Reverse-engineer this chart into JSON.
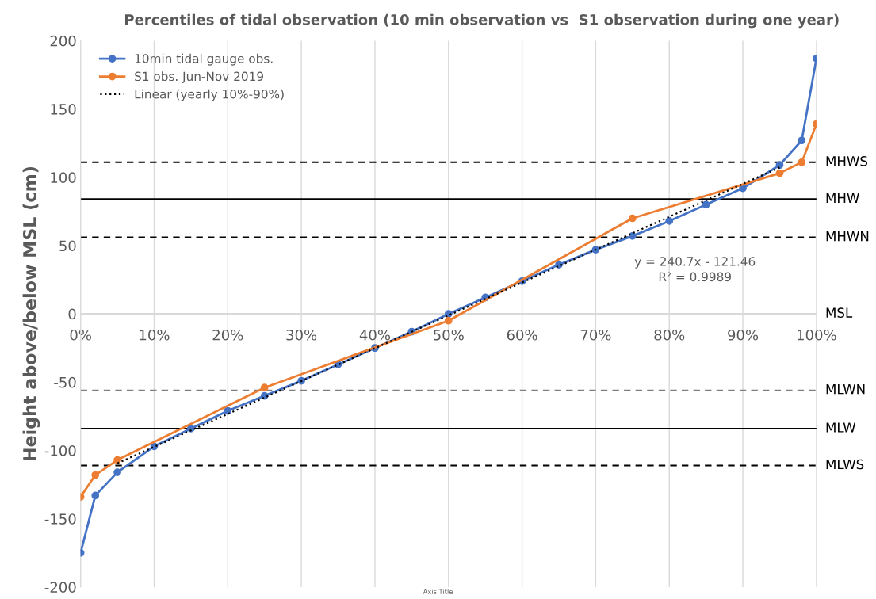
{
  "chart_data": {
    "type": "line",
    "title": "Percentiles of tidal observation (10 min observation vs  S1 observation during one year)",
    "xlabel": "Axis Title",
    "ylabel": "Height above/below MSL (cm)",
    "series": [
      {
        "name": "10min tidal gauge obs.",
        "color": "#4472c4",
        "marker": "circle",
        "line_style": "solid",
        "x": [
          0,
          0.02,
          0.05,
          0.1,
          0.15,
          0.2,
          0.25,
          0.3,
          0.35,
          0.4,
          0.45,
          0.5,
          0.55,
          0.6,
          0.65,
          0.7,
          0.75,
          0.8,
          0.85,
          0.9,
          0.95,
          0.98,
          1.0
        ],
        "values": [
          -175,
          -133,
          -116,
          -97,
          -84,
          -71,
          -60,
          -49,
          -37,
          -25,
          -13,
          0,
          12,
          24,
          36,
          47,
          57,
          68,
          80,
          92,
          109,
          127,
          187
        ]
      },
      {
        "name": "S1 obs. Jun-Nov 2019",
        "color": "#ed7d31",
        "marker": "circle",
        "line_style": "solid",
        "x": [
          0,
          0.02,
          0.05,
          0.25,
          0.5,
          0.75,
          0.95,
          0.98,
          1.0
        ],
        "values": [
          -134,
          -118,
          -107,
          -54,
          -5,
          70,
          103,
          111,
          139
        ]
      },
      {
        "name": "Linear (yearly 10%-90%)",
        "color": "#000000",
        "marker": "none",
        "line_style": "dotted",
        "x": [
          0.05,
          0.95
        ],
        "values": [
          -109.4,
          107.2
        ]
      }
    ],
    "xlim": [
      0,
      1
    ],
    "xticks": [
      {
        "value": 0,
        "label": "0%"
      },
      {
        "value": 0.1,
        "label": "10%"
      },
      {
        "value": 0.2,
        "label": "20%"
      },
      {
        "value": 0.3,
        "label": "30%"
      },
      {
        "value": 0.4,
        "label": "40%"
      },
      {
        "value": 0.5,
        "label": "50%"
      },
      {
        "value": 0.6,
        "label": "60%"
      },
      {
        "value": 0.7,
        "label": "70%"
      },
      {
        "value": 0.8,
        "label": "80%"
      },
      {
        "value": 0.9,
        "label": "90%"
      },
      {
        "value": 1.0,
        "label": "100%"
      }
    ],
    "ylim": [
      -200,
      200
    ],
    "yticks": [
      -200,
      -150,
      -100,
      -50,
      0,
      50,
      100,
      150,
      200
    ],
    "ref_lines": [
      {
        "axis": "y",
        "value": 111,
        "label": "MHWS",
        "color": "#000000",
        "line_style": "dashed"
      },
      {
        "axis": "y",
        "value": 84,
        "label": "MHW",
        "color": "#000000",
        "line_style": "solid"
      },
      {
        "axis": "y",
        "value": 56,
        "label": "MHWN",
        "color": "#000000",
        "line_style": "dashed"
      },
      {
        "axis": "y",
        "value": 0,
        "label": "MSL",
        "color": "#d9d9d9",
        "line_style": "solid"
      },
      {
        "axis": "y",
        "value": -56,
        "label": "MLWN",
        "color": "#7f7f7f",
        "line_style": "dashed"
      },
      {
        "axis": "y",
        "value": -84,
        "label": "MLW",
        "color": "#000000",
        "line_style": "solid"
      },
      {
        "axis": "y",
        "value": -111,
        "label": "MLWS",
        "color": "#000000",
        "line_style": "dashed"
      }
    ],
    "annotations": [
      "y = 240.7x - 121.46\nR² = 0.9989"
    ],
    "grid": "x",
    "legend": "top left"
  }
}
